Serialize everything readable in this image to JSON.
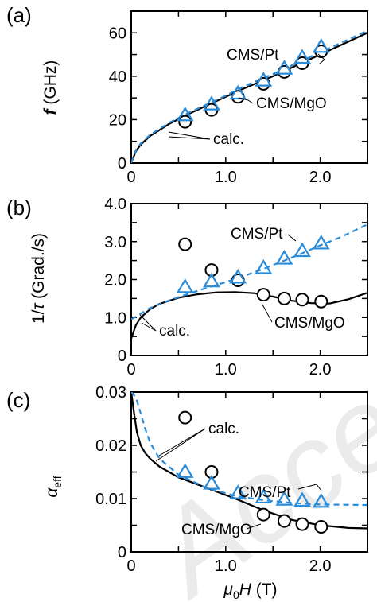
{
  "chart_data": [
    {
      "type": "scatter",
      "panel": "(a)",
      "ylabel": "f (GHz)",
      "xlim": [
        0,
        2.5
      ],
      "ylim": [
        0,
        70
      ],
      "xticks": [
        "0",
        "1.0",
        "2.0"
      ],
      "yticks": [
        "0",
        "20",
        "40",
        "60"
      ],
      "series": [
        {
          "name": "CMS/MgO",
          "marker": "circle",
          "color": "#000000",
          "x": [
            0.57,
            0.85,
            1.13,
            1.4,
            1.62,
            1.81,
            2.01
          ],
          "y": [
            19,
            24.5,
            30.5,
            36.5,
            42,
            46,
            51.5
          ]
        },
        {
          "name": "CMS/Pt",
          "marker": "triangle",
          "color": "#2a8bd8",
          "x": [
            0.57,
            0.85,
            1.13,
            1.4,
            1.62,
            1.81,
            2.01
          ],
          "y": [
            22,
            27,
            32,
            38,
            43.5,
            48.5,
            53.5
          ]
        },
        {
          "name": "calc.",
          "style": "solid",
          "color": "#000000",
          "x": [
            0,
            0.05,
            0.1,
            0.2,
            0.4,
            0.6,
            0.8,
            1.0,
            1.2,
            1.5,
            1.8,
            2.1,
            2.5
          ],
          "y": [
            0,
            5.5,
            8.5,
            12.5,
            18,
            22.5,
            26.5,
            30.5,
            34.5,
            40,
            46,
            52,
            60
          ]
        },
        {
          "name": "calc.",
          "style": "dashed",
          "color": "#2a8bd8",
          "x": [
            0,
            0.05,
            0.1,
            0.2,
            0.4,
            0.6,
            0.8,
            1.0,
            1.2,
            1.5,
            1.8,
            2.1,
            2.5
          ],
          "y": [
            0,
            6,
            9,
            13,
            18.5,
            23,
            27,
            31,
            35.5,
            41,
            47,
            53,
            61
          ]
        }
      ],
      "annotations": [
        "CMS/Pt",
        "CMS/MgO",
        "calc."
      ]
    },
    {
      "type": "scatter",
      "panel": "(b)",
      "ylabel": "1/τ (Grad./s)",
      "xlim": [
        0,
        2.5
      ],
      "ylim": [
        0,
        4.0
      ],
      "xticks": [
        "0",
        "1.0",
        "2.0"
      ],
      "yticks": [
        "0",
        "1.0",
        "2.0",
        "3.0",
        "4.0"
      ],
      "series": [
        {
          "name": "CMS/MgO",
          "marker": "circle",
          "color": "#000000",
          "x": [
            0.57,
            0.85,
            1.13,
            1.4,
            1.62,
            1.81,
            2.01
          ],
          "y": [
            2.93,
            2.25,
            1.98,
            1.6,
            1.5,
            1.47,
            1.42
          ]
        },
        {
          "name": "CMS/Pt",
          "marker": "triangle",
          "color": "#2a8bd8",
          "x": [
            0.57,
            0.85,
            1.13,
            1.4,
            1.62,
            1.81,
            2.01
          ],
          "y": [
            1.8,
            1.95,
            2.05,
            2.3,
            2.55,
            2.75,
            2.95
          ]
        },
        {
          "name": "calc.",
          "style": "solid",
          "color": "#000000",
          "x": [
            0,
            0.05,
            0.1,
            0.2,
            0.3,
            0.5,
            0.7,
            0.9,
            1.1,
            1.3,
            1.5,
            1.7,
            1.9,
            2.1,
            2.3,
            2.5
          ],
          "y": [
            0.45,
            0.8,
            1.0,
            1.22,
            1.36,
            1.52,
            1.61,
            1.66,
            1.67,
            1.64,
            1.55,
            1.44,
            1.38,
            1.37,
            1.48,
            1.65
          ]
        },
        {
          "name": "calc.",
          "style": "dashed",
          "color": "#2a8bd8",
          "x": [
            0,
            0.1,
            0.2,
            0.4,
            0.6,
            0.8,
            1.0,
            1.2,
            1.4,
            1.6,
            1.8,
            2.0,
            2.2,
            2.5
          ],
          "y": [
            0.95,
            1.1,
            1.25,
            1.45,
            1.62,
            1.78,
            1.93,
            2.1,
            2.28,
            2.48,
            2.68,
            2.9,
            3.1,
            3.45
          ]
        }
      ],
      "annotations": [
        "CMS/Pt",
        "CMS/MgO",
        "calc."
      ]
    },
    {
      "type": "scatter",
      "panel": "(c)",
      "ylabel": "α_eff",
      "xlabel": "μ0H (T)",
      "xlim": [
        0,
        2.5
      ],
      "ylim": [
        0,
        0.03
      ],
      "xticks": [
        "0",
        "1.0",
        "2.0"
      ],
      "yticks": [
        "0",
        "0.01",
        "0.02",
        "0.03"
      ],
      "series": [
        {
          "name": "CMS/MgO",
          "marker": "circle",
          "color": "#000000",
          "x": [
            0.57,
            0.85,
            1.4,
            1.62,
            1.81,
            2.01
          ],
          "y": [
            0.0252,
            0.015,
            0.007,
            0.0058,
            0.0052,
            0.0047
          ]
        },
        {
          "name": "CMS/Pt",
          "marker": "triangle",
          "color": "#2a8bd8",
          "x": [
            0.57,
            0.85,
            1.13,
            1.4,
            1.62,
            1.81,
            2.01
          ],
          "y": [
            0.015,
            0.0128,
            0.011,
            0.0102,
            0.0098,
            0.0096,
            0.0094
          ]
        },
        {
          "name": "calc.",
          "style": "solid",
          "color": "#000000",
          "x": [
            0,
            0.03,
            0.06,
            0.1,
            0.15,
            0.2,
            0.3,
            0.5,
            0.8,
            1.1,
            1.4,
            1.7,
            2.0,
            2.3,
            2.5
          ],
          "y": [
            0.03,
            0.026,
            0.0225,
            0.02,
            0.0185,
            0.0175,
            0.016,
            0.014,
            0.012,
            0.01,
            0.0078,
            0.006,
            0.005,
            0.0045,
            0.0044
          ]
        },
        {
          "name": "calc.",
          "style": "dashed",
          "color": "#2a8bd8",
          "x": [
            0,
            0.05,
            0.1,
            0.15,
            0.2,
            0.3,
            0.5,
            0.8,
            1.1,
            1.4,
            1.7,
            2.0,
            2.5
          ],
          "y": [
            0.03,
            0.029,
            0.026,
            0.023,
            0.0205,
            0.0175,
            0.0145,
            0.012,
            0.0105,
            0.0097,
            0.0092,
            0.0089,
            0.0088
          ]
        }
      ],
      "annotations": [
        "calc.",
        "CMS/Pt",
        "CMS/MgO"
      ]
    }
  ]
}
